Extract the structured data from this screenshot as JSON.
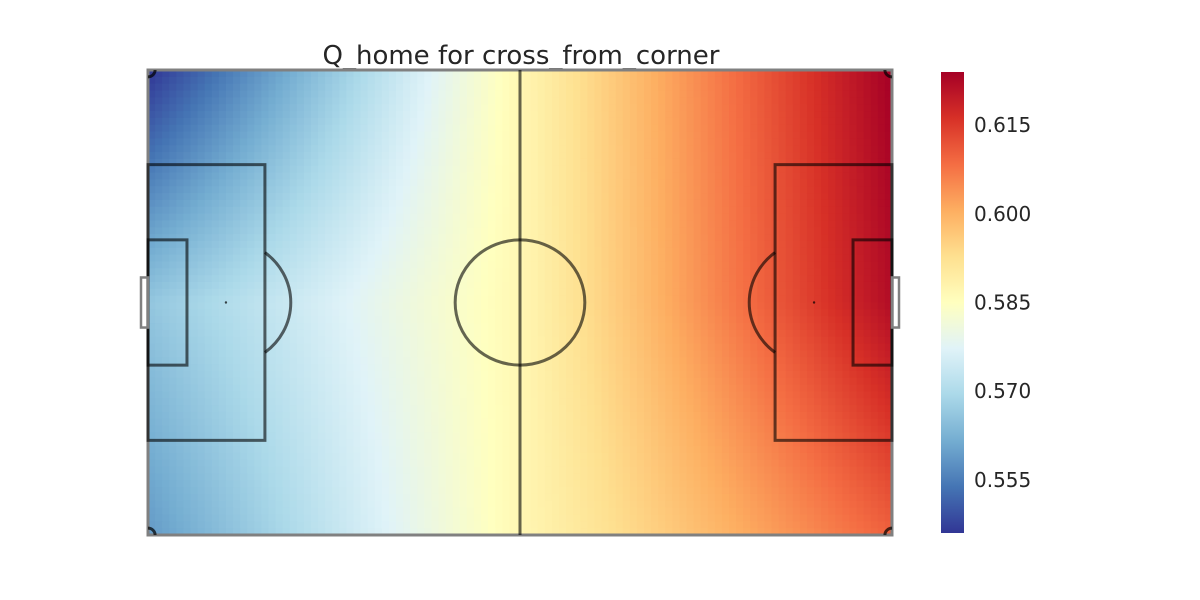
{
  "chart_data": {
    "type": "heatmap",
    "title": "Q_home for cross_from_corner",
    "xlabel": "",
    "ylabel": "",
    "grid": false,
    "colormap": "RdYlBu_r",
    "colorbar": {
      "position": "right",
      "vmin": 0.546,
      "vmax": 0.624,
      "ticks": [
        {
          "value": 0.555,
          "label": "0.555"
        },
        {
          "value": 0.57,
          "label": "0.570"
        },
        {
          "value": 0.585,
          "label": "0.585"
        },
        {
          "value": 0.6,
          "label": "0.600"
        },
        {
          "value": 0.615,
          "label": "0.615"
        }
      ]
    },
    "field": {
      "length": 105,
      "width": 68
    },
    "value_model": {
      "description_values_at_corners": {
        "left_top": 0.546,
        "left_middle": 0.566,
        "left_bottom": 0.559,
        "center": 0.587,
        "right_top": 0.624,
        "right_middle": 0.622,
        "right_bottom": 0.61
      }
    }
  }
}
